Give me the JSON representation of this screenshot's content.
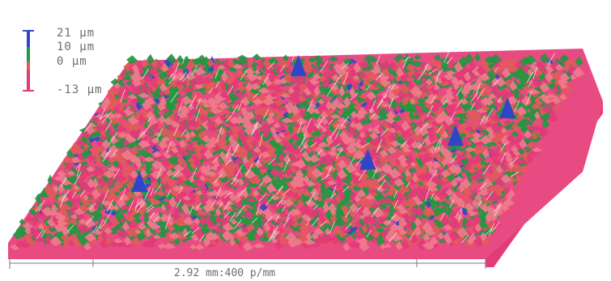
{
  "legend": {
    "max_label": "21 μm",
    "mid_label": "10 μm",
    "zero_label": "0 μm",
    "min_label": "-13 μm",
    "colors": {
      "high": "#2f46c8",
      "upper": "#1f9a3e",
      "lower": "#e25a5a",
      "low": "#e33a78"
    }
  },
  "scale_bar": {
    "text": "2.92 mm:400 p/mm"
  },
  "surface": {
    "type": "3d-roughness-topography",
    "palette": [
      "#e33a78",
      "#f07a8c",
      "#e25a5a",
      "#1f9a3e",
      "#2a8f46",
      "#2f46c8"
    ]
  }
}
